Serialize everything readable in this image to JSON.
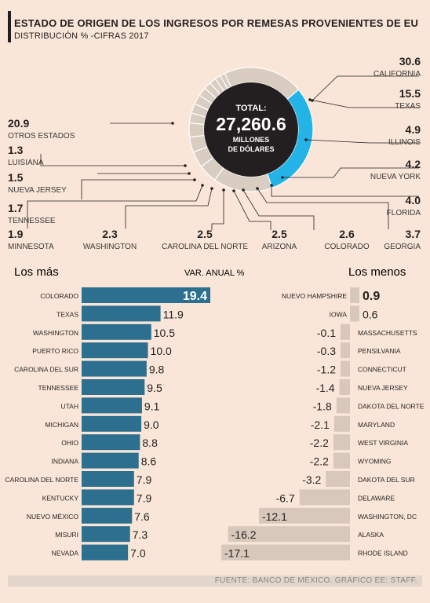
{
  "header": {
    "title": "ESTADO DE ORIGEN DE LOS INGRESOS POR REMESAS PROVENIENTES DE EU",
    "subtitle": "DISTRIBUCIÓN % -CIFRAS 2017"
  },
  "donut": {
    "total_label": "TOTAL:",
    "total_value": "27,260.6",
    "unit_line1": "MILLONES",
    "unit_line2": "DE DÓLARES"
  },
  "sections": {
    "left": "Los más",
    "middle": "VAR. ANUAL %",
    "right": "Los menos"
  },
  "footer": {
    "source": "FUENTE: BANCO DE MÉXICO.  GRÁFICO EE: STAFF."
  },
  "colors": {
    "highlight": "#24b3e6",
    "ring": "#d9ccc1",
    "center": "#231f20",
    "bar_top": "#2c6f8e",
    "bar_bottom": "#d8c8bb",
    "background": "#f9e6d8"
  },
  "chart_data": [
    {
      "type": "pie",
      "title": "ESTADO DE ORIGEN DE LOS INGRESOS POR REMESAS PROVENIENTES DE EU",
      "subtitle": "DISTRIBUCIÓN % -CIFRAS 2017",
      "categories": [
        "CALIFORNIA",
        "TEXAS",
        "ILLINOIS",
        "NUEVA YORK",
        "FLORIDA",
        "GEORGIA",
        "COLORADO",
        "ARIZONA",
        "CAROLINA DEL NORTE",
        "WASHINGTON",
        "MINNESOTA",
        "TENNESSEE",
        "NUEVA JERSEY",
        "LUISIANA",
        "OTROS ESTADOS"
      ],
      "values": [
        30.6,
        15.5,
        4.9,
        4.2,
        4.0,
        3.7,
        2.6,
        2.5,
        2.5,
        2.3,
        1.9,
        1.7,
        1.5,
        1.3,
        20.9
      ],
      "value_labels": [
        "30.6",
        "15.5",
        "4.9",
        "4.2",
        "4.0",
        "3.7",
        "2.6",
        "2.5",
        "2.5",
        "2.3",
        "1.9",
        "1.7",
        "1.5",
        "1.3",
        "20.9"
      ]
    },
    {
      "type": "bar",
      "orientation": "horizontal",
      "xlabel": "VAR. ANUAL %",
      "subtitle": "Los más",
      "categories": [
        "COLORADO",
        "TEXAS",
        "WASHINGTON",
        "PUERTO RICO",
        "CAROLINA DEL SUR",
        "TENNESSEE",
        "UTAH",
        "MICHIGAN",
        "OHIO",
        "INDIANA",
        "CAROLINA DEL NORTE",
        "KENTUCKY",
        "NUEVO MÉXICO",
        "MISURI",
        "NEVADA"
      ],
      "values": [
        19.4,
        11.9,
        10.5,
        10.0,
        9.8,
        9.5,
        9.1,
        9.0,
        8.8,
        8.6,
        7.9,
        7.9,
        7.6,
        7.3,
        7.0
      ],
      "value_labels": [
        "19.4",
        "11.9",
        "10.5",
        "10.0",
        "9.8",
        "9.5",
        "9.1",
        "9.0",
        "8.8",
        "8.6",
        "7.9",
        "7.9",
        "7.6",
        "7.3",
        "7.0"
      ]
    },
    {
      "type": "bar",
      "orientation": "horizontal",
      "xlabel": "VAR. ANUAL %",
      "subtitle": "Los menos",
      "categories": [
        "NUEVO HAMPSHIRE",
        "IOWA",
        "MASSACHUSETTS",
        "PENSILVANIA",
        "CONNECTICUT",
        "NUEVA JERSEY",
        "DAKOTA DEL NORTE",
        "MARYLAND",
        "WEST VIRGINIA",
        "WYOMING",
        "DAKOTA DEL SUR",
        "DELAWARE",
        "WASHINGTON, DC",
        "ALASKA",
        "RHODE ISLAND"
      ],
      "values": [
        0.9,
        0.6,
        -0.1,
        -0.3,
        -1.2,
        -1.4,
        -1.8,
        -2.1,
        -2.2,
        -2.2,
        -3.2,
        -6.7,
        -12.1,
        -16.2,
        -17.1
      ],
      "value_labels": [
        "0.9",
        "0.6",
        "-0.1",
        "-0.3",
        "-1.2",
        "-1.4",
        "-1.8",
        "-2.1",
        "-2.2",
        "-2.2",
        "-3.2",
        "-6.7",
        "-12.1",
        "-16.2",
        "-17.1"
      ]
    }
  ]
}
